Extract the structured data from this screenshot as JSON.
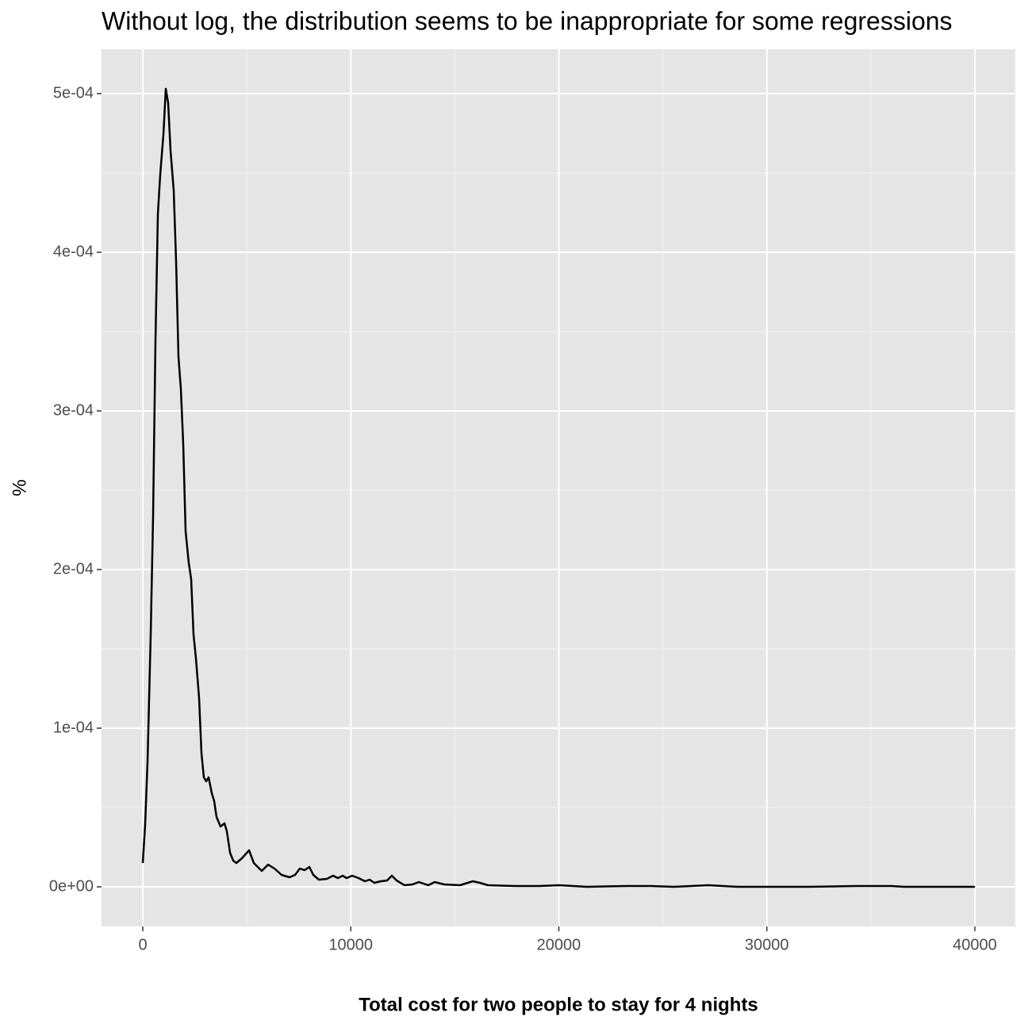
{
  "chart_data": {
    "type": "line",
    "title": "Without log, the distribution seems to be inappropriate for some regressions",
    "x_label": "Total cost for two people to stay for 4 nights",
    "y_label": "%",
    "color": "#000000",
    "panel_color": "#e5e5e5",
    "grid": true,
    "minor_grid": true,
    "xlim": [
      -1983,
      41945
    ],
    "ylim": [
      -2.5e-05,
      0.000528
    ],
    "xticks": [
      0,
      10000,
      20000,
      30000,
      40000
    ],
    "yticks": [
      {
        "value": 0,
        "label": "0e+00"
      },
      {
        "value": 0.0001,
        "label": "1e-04"
      },
      {
        "value": 0.0002,
        "label": "2e-04"
      },
      {
        "value": 0.0003,
        "label": "3e-04"
      },
      {
        "value": 0.0004,
        "label": "4e-04"
      },
      {
        "value": 0.0005,
        "label": "5e-04"
      }
    ],
    "x": [
      0,
      114,
      229,
      381,
      496,
      610,
      725,
      839,
      991,
      1106,
      1220,
      1335,
      1487,
      1602,
      1716,
      1830,
      1945,
      2059,
      2212,
      2326,
      2440,
      2555,
      2707,
      2822,
      2936,
      3050,
      3165,
      3317,
      3432,
      3546,
      3737,
      3928,
      4042,
      4195,
      4347,
      4500,
      4767,
      5110,
      5338,
      5720,
      6025,
      6330,
      6673,
      7054,
      7321,
      7550,
      7779,
      8007,
      8198,
      8465,
      8847,
      9152,
      9380,
      9609,
      9800,
      10067,
      10372,
      10677,
      10906,
      11134,
      11439,
      11745,
      11973,
      12202,
      12583,
      12965,
      13270,
      13727,
      14032,
      14490,
      15253,
      15863,
      16206,
      16587,
      17922,
      19066,
      20019,
      21354,
      23260,
      24404,
      25548,
      27188,
      28599,
      32030,
      34318,
      35996,
      36606,
      40000
    ],
    "values": [
      1.5e-05,
      3.9e-05,
      7.9e-05,
      0.000159,
      0.000234,
      0.000344,
      0.000424,
      0.000449,
      0.000474,
      0.000503,
      0.000494,
      0.000464,
      0.000439,
      0.000394,
      0.000334,
      0.000314,
      0.000279,
      0.000224,
      0.000204,
      0.000194,
      0.000159,
      0.000144,
      0.000119,
      8.4e-05,
      6.9e-05,
      6.65e-05,
      6.9e-05,
      5.9e-05,
      5.4e-05,
      4.4e-05,
      3.8e-05,
      4e-05,
      3.5e-05,
      2.15e-05,
      1.65e-05,
      1.5e-05,
      1.8e-05,
      2.3e-05,
      1.5e-05,
      1e-05,
      1.4e-05,
      1.15e-05,
      7.5e-06,
      6e-06,
      7.5e-06,
      1.15e-05,
      1.05e-05,
      1.25e-05,
      7.5e-06,
      4.5e-06,
      5e-06,
      7e-06,
      5.5e-06,
      7e-06,
      5.5e-06,
      7e-06,
      5.5e-06,
      3.5e-06,
      4.5e-06,
      2.5e-06,
      3.5e-06,
      4e-06,
      7e-06,
      4e-06,
      1e-06,
      1.5e-06,
      3e-06,
      1e-06,
      3e-06,
      1.5e-06,
      1e-06,
      3.5e-06,
      2.5e-06,
      1e-06,
      5e-07,
      5e-07,
      1e-06,
      0,
      5e-07,
      5e-07,
      0,
      1e-06,
      0,
      0,
      5e-07,
      5e-07,
      0,
      0
    ]
  }
}
